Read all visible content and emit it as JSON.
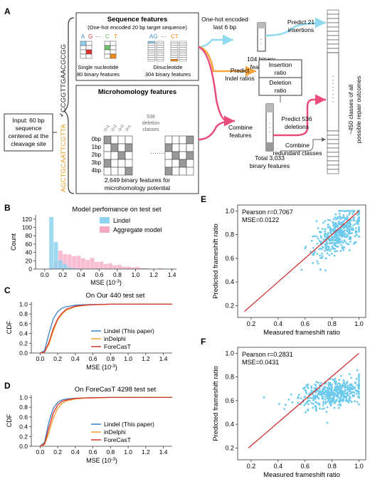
{
  "panel_a": {
    "label": "A",
    "input_text": [
      "Input: 60 bp",
      "sequence",
      "centered at the",
      "cleavage site"
    ],
    "seq_top": "CCGGTTGAACGCGG",
    "seq_bottom": "AGCTGCAATTCGTTA",
    "seq_features": {
      "title": "Sequence features",
      "subtitle": "(One-hot encoded 20 bp target sequence)",
      "letters_single": [
        "A",
        "G",
        "···",
        "C",
        "T"
      ],
      "letters_di": [
        "AG",
        "···",
        "CT"
      ],
      "single_label": [
        "Single nucleotide",
        "80 binary features"
      ],
      "di_label": [
        "Dinucleotide",
        "304 binary features"
      ]
    },
    "micro_features": {
      "title": "Microhomology features",
      "rows": [
        "0bp",
        "1bp",
        "2bp",
        "3bp",
        "4bp"
      ],
      "classes": [
        "536",
        "deletion",
        "classes"
      ],
      "footer": [
        "2,649 binary features for",
        "microhomology potential"
      ]
    },
    "flow": {
      "onehot": [
        "One-hot encoded",
        "last 6 bp"
      ],
      "features104": [
        "104 binary",
        "features"
      ],
      "predict_indel": [
        "Predict",
        "Indel ratios"
      ],
      "combine": [
        "Combine",
        "features"
      ],
      "insertion_ratio": [
        "Insertion",
        "ratio"
      ],
      "deletion_ratio": [
        "Deletion",
        "ratio"
      ],
      "predict21": [
        "Predict 21",
        "insertions"
      ],
      "predict536": [
        "Predict  536",
        "deletions"
      ],
      "combine_redundant": [
        "Combine",
        "redundant classes"
      ],
      "total": [
        "Total 3,033",
        "binary features"
      ],
      "outcomes": [
        "~450 classes of all",
        "possible repair outcomes"
      ]
    }
  },
  "panel_b": {
    "label": "B",
    "chart_data": {
      "type": "bar",
      "title": "Model perfomance on test set",
      "xlabel": "MSE (10",
      "xlabel_sup": "-3",
      "xlabel_end": ")",
      "ylabel": "Count",
      "xlim": [
        -0.1,
        1.45
      ],
      "ylim": [
        0,
        130
      ],
      "xticks": [
        "0.0",
        "0.2",
        "0.4",
        "0.6",
        "0.8",
        "1.0",
        "1.2",
        "1.4"
      ],
      "yticks": [
        "0",
        "20",
        "40",
        "60",
        "80",
        "100",
        "120"
      ],
      "bin_width": 0.05,
      "series": [
        {
          "name": "Lindel",
          "color": "#8fd3ee",
          "bins": [
            [
              0.05,
              125
            ],
            [
              0.1,
              65
            ],
            [
              0.15,
              21
            ],
            [
              0.2,
              12
            ],
            [
              0.25,
              4
            ],
            [
              0.3,
              2
            ]
          ]
        },
        {
          "name": "Aggregate model",
          "color": "#f5a8c4",
          "bins": [
            [
              0.05,
              3
            ],
            [
              0.1,
              18
            ],
            [
              0.15,
              44
            ],
            [
              0.2,
              36
            ],
            [
              0.25,
              35
            ],
            [
              0.3,
              31
            ],
            [
              0.35,
              32
            ],
            [
              0.4,
              26
            ],
            [
              0.45,
              22
            ],
            [
              0.5,
              27
            ],
            [
              0.55,
              17
            ],
            [
              0.6,
              18
            ],
            [
              0.65,
              12
            ],
            [
              0.7,
              14
            ],
            [
              0.75,
              9
            ],
            [
              0.8,
              10
            ],
            [
              0.85,
              6
            ],
            [
              0.9,
              6
            ],
            [
              0.95,
              4
            ],
            [
              1.0,
              5
            ],
            [
              1.05,
              2
            ],
            [
              1.1,
              2
            ],
            [
              1.25,
              2
            ]
          ]
        }
      ]
    }
  },
  "panel_c": {
    "label": "C",
    "chart_data": {
      "type": "line",
      "title": "On Our 440 test set",
      "xlabel": "MSE (10",
      "xlabel_sup": "-3",
      "xlabel_end": ")",
      "ylabel": "CDF",
      "xlim": [
        -0.1,
        1.5
      ],
      "ylim": [
        0,
        1.05
      ],
      "xticks": [
        "0.0",
        "0.2",
        "0.4",
        "0.6",
        "0.8",
        "1.0",
        "1.2",
        "1.4"
      ],
      "yticks": [
        "0.0",
        "0.2",
        "0.4",
        "0.6",
        "0.8",
        "1.0"
      ],
      "series": [
        {
          "name": "Lindel (This paper)",
          "color": "#3a7fc2",
          "x": [
            0,
            0.05,
            0.1,
            0.15,
            0.2,
            0.25,
            0.3,
            0.4,
            0.5,
            0.6,
            0.8,
            1.0,
            1.5
          ],
          "y": [
            0,
            0.05,
            0.4,
            0.7,
            0.85,
            0.92,
            0.95,
            0.98,
            0.99,
            0.995,
            1.0,
            1.0,
            1.0
          ]
        },
        {
          "name": "inDelphi",
          "color": "#f0a02a",
          "x": [
            0,
            0.05,
            0.1,
            0.15,
            0.2,
            0.25,
            0.3,
            0.4,
            0.5,
            0.6,
            0.8,
            1.0,
            1.5
          ],
          "y": [
            0,
            0.02,
            0.18,
            0.45,
            0.68,
            0.8,
            0.88,
            0.95,
            0.975,
            0.99,
            1.0,
            1.0,
            1.0
          ]
        },
        {
          "name": "ForeCasT",
          "color": "#d8322a",
          "x": [
            0,
            0.05,
            0.1,
            0.15,
            0.2,
            0.25,
            0.3,
            0.4,
            0.5,
            0.6,
            0.8,
            1.0,
            1.5
          ],
          "y": [
            0,
            0.02,
            0.22,
            0.5,
            0.7,
            0.82,
            0.9,
            0.96,
            0.98,
            0.99,
            1.0,
            1.0,
            1.0
          ]
        }
      ]
    }
  },
  "panel_d": {
    "label": "D",
    "chart_data": {
      "type": "line",
      "title": "On ForeCasT 4298 test set",
      "xlabel": "MSE (10",
      "xlabel_sup": "-3",
      "xlabel_end": ")",
      "ylabel": "CDF",
      "xlim": [
        -0.1,
        1.5
      ],
      "ylim": [
        0,
        1.05
      ],
      "xticks": [
        "0.0",
        "0.2",
        "0.4",
        "0.6",
        "0.8",
        "1.0",
        "1.2",
        "1.4"
      ],
      "yticks": [
        "0.0",
        "0.2",
        "0.4",
        "0.6",
        "0.8",
        "1.0"
      ],
      "series": [
        {
          "name": "Lindel (This paper)",
          "color": "#3a7fc2",
          "x": [
            0,
            0.05,
            0.1,
            0.15,
            0.2,
            0.25,
            0.3,
            0.4,
            0.5,
            0.6,
            0.8,
            1.0,
            1.5
          ],
          "y": [
            0,
            0.08,
            0.5,
            0.78,
            0.9,
            0.95,
            0.97,
            0.985,
            0.99,
            0.995,
            1.0,
            1.0,
            1.0
          ]
        },
        {
          "name": "inDelphi",
          "color": "#f0a02a",
          "x": [
            0,
            0.05,
            0.1,
            0.15,
            0.2,
            0.25,
            0.3,
            0.4,
            0.5,
            0.6,
            0.8,
            1.0,
            1.5
          ],
          "y": [
            0,
            0.03,
            0.28,
            0.58,
            0.78,
            0.88,
            0.93,
            0.97,
            0.985,
            0.99,
            1.0,
            1.0,
            1.0
          ]
        },
        {
          "name": "ForeCasT",
          "color": "#d8322a",
          "x": [
            0,
            0.05,
            0.1,
            0.15,
            0.2,
            0.25,
            0.3,
            0.4,
            0.5,
            0.6,
            0.8,
            1.0,
            1.5
          ],
          "y": [
            0,
            0.05,
            0.38,
            0.68,
            0.85,
            0.92,
            0.95,
            0.98,
            0.99,
            0.995,
            1.0,
            1.0,
            1.0
          ]
        }
      ]
    }
  },
  "panel_e": {
    "label": "E",
    "chart_data": {
      "type": "scatter",
      "annotation": [
        "Pearson r=0.7067",
        "MSE=0.0122"
      ],
      "xlabel": "Measured frameshift ratio",
      "ylabel": "Predicted frameshift ratio",
      "xlim": [
        0.1,
        1.05
      ],
      "ylim": [
        0.1,
        1.05
      ],
      "xticks": [
        0.2,
        0.4,
        0.6,
        0.8,
        1.0
      ],
      "yticks": [
        0.2,
        0.4,
        0.6,
        0.8,
        1.0
      ],
      "point_color": "#6ccaec",
      "fit_color": "#cc2222",
      "fit_line": [
        [
          0.15,
          0.15
        ],
        [
          1.0,
          1.0
        ]
      ],
      "pearson_r": 0.7067,
      "n_points": 440,
      "cluster": {
        "x_mean": 0.85,
        "x_sd": 0.09,
        "slope": 0.72,
        "intercept": 0.2,
        "noise": 0.08
      }
    }
  },
  "panel_f": {
    "label": "F",
    "chart_data": {
      "type": "scatter",
      "annotation": [
        "Pearson r=0.2831",
        "MSE=0.0431"
      ],
      "xlabel": "Measured frameshift ratio",
      "ylabel": "Predicted frameshift ratio",
      "xlim": [
        0.1,
        1.05
      ],
      "ylim": [
        0.1,
        1.05
      ],
      "xticks": [
        0.2,
        0.4,
        0.6,
        0.8,
        1.0
      ],
      "yticks": [
        0.2,
        0.4,
        0.6,
        0.8,
        1.0
      ],
      "point_color": "#6ccaec",
      "fit_color": "#cc2222",
      "fit_line": [
        [
          0.18,
          0.2
        ],
        [
          1.0,
          1.0
        ]
      ],
      "pearson_r": 0.2831,
      "n_points": 440,
      "cluster": {
        "x_mean": 0.8,
        "x_sd": 0.12,
        "slope": 0.2,
        "intercept": 0.5,
        "noise": 0.055
      }
    }
  }
}
